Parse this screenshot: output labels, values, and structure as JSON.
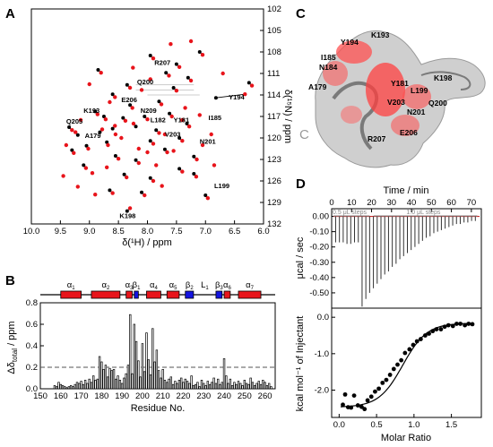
{
  "chart_data": [
    {
      "panel": "A",
      "type": "scatter",
      "xlabel": "δ(¹H) / ppm",
      "ylabel": "δ(¹⁵N) / ppm",
      "xlim": [
        10.0,
        6.0
      ],
      "ylim": [
        132,
        102
      ],
      "xticks": [
        "10.0",
        "9.5",
        "9.0",
        "8.5",
        "8.0",
        "7.5",
        "7.0",
        "6.5",
        "6.0"
      ],
      "yticks": [
        "102",
        "105",
        "108",
        "111",
        "114",
        "117",
        "120",
        "123",
        "126",
        "129",
        "132"
      ],
      "series": [
        {
          "color": "#000000",
          "points": [
            [
              9.2,
              119.6
            ],
            [
              9.05,
              121.1
            ],
            [
              9.3,
              121.7
            ],
            [
              8.82,
              119.2
            ],
            [
              8.7,
              120.6
            ],
            [
              8.6,
              118.7
            ],
            [
              8.42,
              117.2
            ],
            [
              8.2,
              118.4
            ],
            [
              8.05,
              117.0
            ],
            [
              7.85,
              118.9
            ],
            [
              7.62,
              116.6
            ],
            [
              7.95,
              120.4
            ],
            [
              7.45,
              120.0
            ],
            [
              7.32,
              118.0
            ],
            [
              8.6,
              113.9
            ],
            [
              8.35,
              112.6
            ],
            [
              7.8,
              114.9
            ],
            [
              7.55,
              113.0
            ],
            [
              6.82,
              114.4
            ],
            [
              7.3,
              111.6
            ],
            [
              8.9,
              116.3
            ],
            [
              8.75,
              117.0
            ],
            [
              8.55,
              122.5
            ],
            [
              8.2,
              123.1
            ],
            [
              7.7,
              121.6
            ],
            [
              7.2,
              122.6
            ],
            [
              8.4,
              125.1
            ],
            [
              7.95,
              125.6
            ],
            [
              8.65,
              127.3
            ],
            [
              7.0,
              128.0
            ],
            [
              8.35,
              130.2
            ],
            [
              7.95,
              108.5
            ],
            [
              7.1,
              108.0
            ],
            [
              8.3,
              115.4
            ],
            [
              9.1,
              123.8
            ],
            [
              7.5,
              109.7
            ],
            [
              6.25,
              112.3
            ],
            [
              9.35,
              118.5
            ],
            [
              7.2,
              125.0
            ],
            [
              8.1,
              127.6
            ],
            [
              7.45,
              124.3
            ],
            [
              8.85,
              110.5
            ],
            [
              7.68,
              110.9
            ]
          ]
        },
        {
          "color": "#e8141b",
          "points": [
            [
              9.24,
              119.2
            ],
            [
              9.02,
              121.5
            ],
            [
              9.27,
              122.1
            ],
            [
              8.78,
              118.8
            ],
            [
              8.68,
              121.0
            ],
            [
              8.56,
              118.3
            ],
            [
              8.38,
              117.6
            ],
            [
              8.24,
              118.0
            ],
            [
              8.0,
              117.4
            ],
            [
              7.8,
              119.3
            ],
            [
              7.58,
              117.0
            ],
            [
              7.9,
              120.8
            ],
            [
              7.4,
              120.4
            ],
            [
              7.28,
              118.4
            ],
            [
              8.56,
              114.3
            ],
            [
              8.3,
              113.0
            ],
            [
              7.76,
              115.3
            ],
            [
              7.5,
              113.4
            ],
            [
              6.32,
              113.9
            ],
            [
              7.25,
              112.0
            ],
            [
              8.86,
              116.7
            ],
            [
              8.72,
              117.4
            ],
            [
              8.5,
              122.9
            ],
            [
              8.15,
              123.5
            ],
            [
              7.66,
              122.0
            ],
            [
              7.15,
              123.0
            ],
            [
              8.36,
              125.5
            ],
            [
              7.9,
              126.0
            ],
            [
              8.6,
              127.7
            ],
            [
              6.96,
              128.4
            ],
            [
              8.3,
              129.8
            ],
            [
              7.9,
              108.9
            ],
            [
              7.05,
              108.4
            ],
            [
              8.26,
              115.8
            ],
            [
              9.06,
              124.2
            ],
            [
              7.45,
              110.1
            ],
            [
              6.2,
              112.7
            ],
            [
              9.3,
              118.9
            ],
            [
              7.16,
              125.4
            ],
            [
              8.05,
              128.0
            ],
            [
              7.4,
              124.7
            ],
            [
              8.8,
              110.9
            ],
            [
              7.63,
              111.3
            ],
            [
              8.95,
              124.9
            ],
            [
              9.4,
              121.0
            ],
            [
              8.45,
              120.0
            ],
            [
              8.15,
              121.5
            ],
            [
              7.7,
              119.5
            ],
            [
              7.55,
              121.8
            ],
            [
              7.35,
              115.8
            ],
            [
              8.1,
              113.3
            ],
            [
              7.95,
              111.8
            ],
            [
              8.65,
              115.0
            ],
            [
              9.15,
              117.5
            ],
            [
              6.9,
              119.5
            ],
            [
              7.1,
              116.8
            ],
            [
              7.85,
              123.8
            ],
            [
              8.7,
              124.1
            ],
            [
              9.45,
              125.3
            ],
            [
              8.25,
              110.2
            ],
            [
              7.6,
              106.9
            ],
            [
              6.7,
              111.0
            ],
            [
              7.05,
              121.0
            ],
            [
              8.9,
              127.9
            ],
            [
              9.2,
              126.8
            ],
            [
              7.75,
              126.7
            ],
            [
              8.55,
              119.5
            ],
            [
              8.0,
              122.0
            ],
            [
              7.4,
              117.5
            ],
            [
              6.85,
              123.8
            ],
            [
              7.25,
              106.5
            ],
            [
              9.0,
              112.5
            ]
          ]
        }
      ],
      "annotations": [
        "R207",
        "Q200",
        "E206",
        "N209",
        "L182",
        "K193",
        "Q205",
        "A179",
        "V203",
        "Y181",
        "N201",
        "Y194",
        "I185",
        "L199",
        "K198"
      ]
    },
    {
      "panel": "B",
      "type": "bar",
      "xlabel": "Residue No.",
      "ylabel": "Δδ_total / ppm",
      "xlim": [
        150,
        265
      ],
      "ylim": [
        0.0,
        0.8
      ],
      "xticks": [
        "150",
        "160",
        "170",
        "180",
        "190",
        "200",
        "210",
        "220",
        "230",
        "240",
        "250",
        "260"
      ],
      "yticks": [
        "0.0",
        "0.2",
        "0.4",
        "0.6",
        "0.8"
      ],
      "threshold": 0.2,
      "secondary_structure": [
        "α1",
        "α2",
        "α3",
        "β1",
        "α4",
        "α5",
        "β2",
        "L1",
        "β3",
        "α6",
        "α7"
      ],
      "x": [
        157,
        158,
        159,
        160,
        161,
        162,
        163,
        164,
        165,
        166,
        167,
        168,
        169,
        170,
        171,
        172,
        173,
        174,
        175,
        176,
        177,
        178,
        179,
        180,
        181,
        182,
        183,
        184,
        185,
        186,
        187,
        188,
        189,
        190,
        191,
        192,
        193,
        194,
        195,
        196,
        197,
        198,
        199,
        200,
        201,
        202,
        203,
        204,
        205,
        206,
        207,
        208,
        209,
        210,
        211,
        212,
        213,
        214,
        215,
        216,
        217,
        218,
        219,
        220,
        221,
        222,
        223,
        224,
        225,
        226,
        227,
        228,
        229,
        230,
        231,
        232,
        233,
        234,
        235,
        236,
        237,
        238,
        239,
        240,
        241,
        242,
        243,
        244,
        245,
        246,
        247,
        248,
        249,
        250,
        251,
        252,
        253,
        254,
        255,
        256,
        257,
        258,
        259,
        260,
        261,
        262,
        263
      ],
      "values": [
        0.03,
        0.02,
        0.06,
        0.04,
        0.03,
        0.02,
        0.01,
        0.02,
        0.03,
        0.02,
        0.04,
        0.06,
        0.05,
        0.07,
        0.04,
        0.08,
        0.05,
        0.09,
        0.06,
        0.12,
        0.08,
        0.09,
        0.3,
        0.25,
        0.18,
        0.22,
        0.11,
        0.19,
        0.17,
        0.18,
        0.09,
        0.12,
        0.08,
        0.05,
        0.1,
        0.14,
        0.22,
        0.69,
        0.14,
        0.6,
        0.44,
        0.26,
        0.11,
        0.42,
        0.16,
        0.52,
        0.27,
        0.13,
        0.56,
        0.25,
        0.36,
        0.17,
        0.1,
        0.18,
        0.08,
        0.06,
        0.09,
        0.11,
        0.04,
        0.07,
        0.05,
        0.08,
        0.1,
        0.06,
        0.09,
        0.07,
        0.05,
        0.12,
        0.03,
        0.04,
        0.06,
        0.02,
        0.08,
        0.05,
        0.03,
        0.07,
        0.04,
        0.06,
        0.1,
        0.05,
        0.09,
        0.04,
        0.06,
        0.28,
        0.12,
        0.05,
        0.09,
        0.03,
        0.06,
        0.04,
        0.07,
        0.05,
        0.03,
        0.08,
        0.05,
        0.04,
        0.1,
        0.06,
        0.03,
        0.05,
        0.07,
        0.04,
        0.08,
        0.06,
        0.03,
        0.05,
        0.02
      ]
    },
    {
      "panel": "D",
      "type": "line",
      "title": "Time / min",
      "ylabel": "μcal / sec",
      "xlim": [
        0,
        75
      ],
      "ylim": [
        -0.6,
        0.05
      ],
      "xticks": [
        "0",
        "10",
        "20",
        "30",
        "40",
        "50",
        "60",
        "70"
      ],
      "yticks": [
        "0.00",
        "-0.10",
        "-0.20",
        "-0.30",
        "-0.40",
        "-0.50"
      ],
      "step_labels": [
        "0.5 μL steps",
        "1.0 μL steps"
      ],
      "peak_values": [
        -0.17,
        -0.17,
        -0.17,
        -0.18,
        -0.18,
        -0.17,
        -0.17,
        -0.59,
        -0.54,
        -0.5,
        -0.47,
        -0.44,
        -0.41,
        -0.38,
        -0.36,
        -0.33,
        -0.31,
        -0.28,
        -0.26,
        -0.24,
        -0.22,
        -0.2,
        -0.18,
        -0.16,
        -0.14,
        -0.13,
        -0.11,
        -0.1,
        -0.09,
        -0.08,
        -0.07,
        -0.06,
        -0.05,
        -0.05,
        -0.04,
        -0.04,
        -0.03,
        -0.03
      ]
    },
    {
      "panel": "D-lower",
      "type": "scatter",
      "xlabel": "Molar Ratio",
      "ylabel": "kcal mol⁻¹ of Injectant",
      "xlim": [
        -0.1,
        1.9
      ],
      "ylim": [
        -2.75,
        0.25
      ],
      "xticks": [
        "0.0",
        "0.5",
        "1.0",
        "1.5"
      ],
      "yticks": [
        "0.0",
        "-1.0",
        "-2.0"
      ],
      "x": [
        0.05,
        0.08,
        0.12,
        0.16,
        0.2,
        0.25,
        0.3,
        0.34,
        0.38,
        0.43,
        0.48,
        0.53,
        0.58,
        0.63,
        0.68,
        0.73,
        0.78,
        0.83,
        0.88,
        0.94,
        0.99,
        1.04,
        1.09,
        1.15,
        1.2,
        1.25,
        1.3,
        1.36,
        1.41,
        1.46,
        1.52,
        1.57,
        1.62,
        1.68,
        1.73,
        1.78
      ],
      "y": [
        -2.4,
        -2.12,
        -2.47,
        -2.48,
        -2.15,
        -2.42,
        -2.46,
        -2.52,
        -2.28,
        -2.18,
        -2.04,
        -1.96,
        -1.8,
        -1.72,
        -1.58,
        -1.42,
        -1.3,
        -1.18,
        -0.98,
        -0.88,
        -0.76,
        -0.66,
        -0.6,
        -0.5,
        -0.45,
        -0.38,
        -0.33,
        -0.33,
        -0.26,
        -0.22,
        -0.24,
        -0.18,
        -0.18,
        -0.22,
        -0.18,
        -0.19
      ],
      "fit_endpoints": [
        -2.47,
        -0.16
      ]
    }
  ],
  "panel_labels": {
    "a": "A",
    "b": "B",
    "c": "C",
    "d": "D"
  },
  "structure_labels": {
    "c_term": "C",
    "k193": "K193",
    "y194": "Y194",
    "i185": "I185",
    "n184": "N184",
    "a179": "A179",
    "y181": "Y181",
    "k198": "K198",
    "l199": "L199",
    "q200": "Q200",
    "v203": "V203",
    "n201": "N201",
    "e206": "E206",
    "r207": "R207"
  },
  "colors": {
    "free": "#000000",
    "bound": "#e8141b",
    "helix": "#e8141b",
    "strand": "#1414e0",
    "ruler": "#888888",
    "surface": "#c8c8c8",
    "highlight": "#e8141b"
  },
  "texts": {
    "a_xlabel": "δ(¹H) / ppm",
    "a_ylabel": "δ(¹⁵N) / ppm",
    "b_xlabel": "Residue No.",
    "b_ylabel": "Δδ",
    "b_ylabel_sub": "total",
    "b_ylabel_unit": " / ppm",
    "d_top": "Time / min",
    "d_ylabel_top": "μcal / sec",
    "d_ylabel_bot": "kcal mol⁻¹ of Injectant",
    "d_xlabel": "Molar Ratio",
    "step1": "0.5 μL steps",
    "step2": "1.0 μL steps"
  }
}
